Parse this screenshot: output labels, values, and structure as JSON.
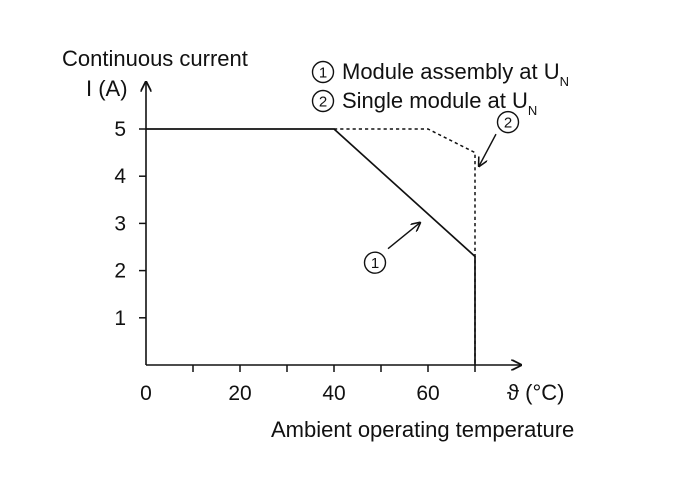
{
  "chart_data": {
    "type": "line",
    "y_title_line1": "Continuous current",
    "ylabel": "I (A)",
    "xlabel": "ϑ (°C)",
    "x_title": "Ambient operating temperature",
    "xlim": [
      0,
      80
    ],
    "ylim": [
      0,
      5.5
    ],
    "x_ticks": [
      0,
      10,
      20,
      30,
      40,
      50,
      60,
      70
    ],
    "x_tick_labels": [
      "0",
      "",
      "20",
      "",
      "40",
      "",
      "60",
      ""
    ],
    "y_ticks": [
      1,
      2,
      3,
      4,
      5
    ],
    "y_tick_labels": [
      "1",
      "2",
      "3",
      "4",
      "5"
    ],
    "grid": false,
    "legend_position": "top-right",
    "series": [
      {
        "marker": "1",
        "name": "Module assembly at U",
        "name_sub": "N",
        "line_style": "solid",
        "x": [
          0,
          40,
          70,
          70
        ],
        "y": [
          5,
          5,
          2.3,
          0
        ]
      },
      {
        "marker": "2",
        "name": "Single module at U",
        "name_sub": "N",
        "line_style": "dashed",
        "x": [
          40,
          60,
          70,
          70
        ],
        "y": [
          5,
          5,
          4.5,
          0
        ]
      }
    ],
    "annotations": [
      {
        "marker": "1",
        "points_to_x": 60,
        "points_to_y": 3.1
      },
      {
        "marker": "2",
        "points_to_x": 70,
        "points_to_y": 4.15
      }
    ]
  }
}
